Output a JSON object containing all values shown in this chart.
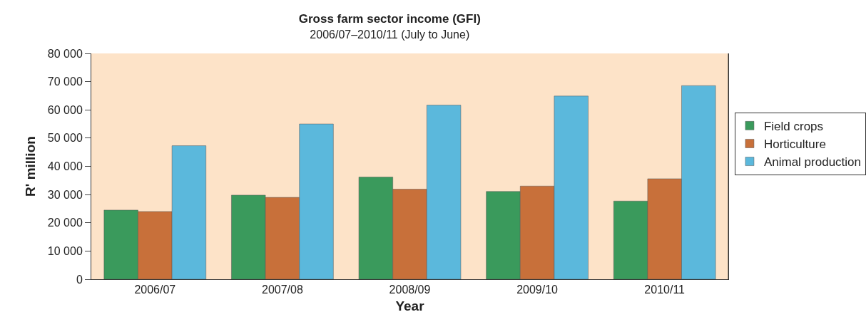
{
  "chart_data": {
    "type": "bar",
    "title": "Gross farm sector income (GFI)",
    "subtitle": "2006/07–2010/11 (July to June)",
    "xlabel": "Year",
    "ylabel": "R' million",
    "categories": [
      "2006/07",
      "2007/08",
      "2008/09",
      "2009/10",
      "2010/11"
    ],
    "series": [
      {
        "name": "Field crops",
        "color": "#3a9a5c",
        "values": [
          24500,
          29800,
          36200,
          31100,
          27700
        ]
      },
      {
        "name": "Horticulture",
        "color": "#c8703a",
        "values": [
          24000,
          29000,
          31900,
          33000,
          35600
        ]
      },
      {
        "name": "Animal production",
        "color": "#5bb8dc",
        "values": [
          47300,
          55000,
          61700,
          64900,
          68600
        ]
      }
    ],
    "ylim": [
      0,
      80000
    ],
    "yticks": [
      0,
      {
        "value": 10000,
        "label": "10 000"
      },
      {
        "value": 20000,
        "label": "20 000"
      },
      {
        "value": 30000,
        "label": "30 000"
      },
      {
        "value": 40000,
        "label": "40 000"
      },
      {
        "value": 50000,
        "label": "50 000"
      },
      {
        "value": 60000,
        "label": "60 000"
      },
      {
        "value": 70000,
        "label": "70 000"
      },
      {
        "value": 80000,
        "label": "80 000"
      }
    ],
    "grid": false,
    "legend": "right"
  }
}
